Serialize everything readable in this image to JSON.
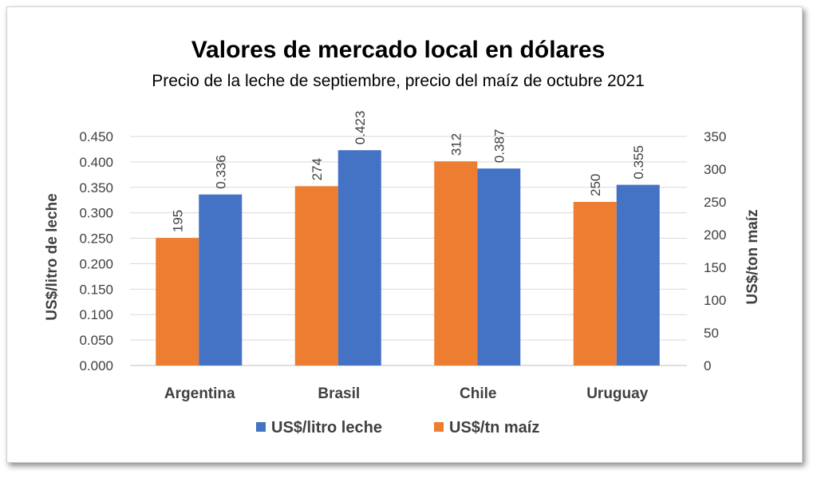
{
  "chart_data": {
    "type": "bar",
    "title": "Valores de mercado local en dólares",
    "subtitle": "Precio de la leche de septiembre, precio del maíz de octubre 2021",
    "categories": [
      "Argentina",
      "Brasil",
      "Chile",
      "Uruguay"
    ],
    "series": [
      {
        "name": "US$/litro leche",
        "axis": "left",
        "color": "#4472C4",
        "values": [
          0.336,
          0.423,
          0.387,
          0.355
        ],
        "labels": [
          "0.336",
          "0.423",
          "0.387",
          "0.355"
        ]
      },
      {
        "name": "US$/tn maíz",
        "axis": "right",
        "color": "#ED7D31",
        "values": [
          195,
          274,
          312,
          250
        ],
        "labels": [
          "195",
          "274",
          "312",
          "250"
        ]
      }
    ],
    "y_left": {
      "label": "US$/litro de leche",
      "min": 0,
      "max": 0.45,
      "ticks": [
        "0.000",
        "0.050",
        "0.100",
        "0.150",
        "0.200",
        "0.250",
        "0.300",
        "0.350",
        "0.400",
        "0.450"
      ]
    },
    "y_right": {
      "label": "US$/ton maíz",
      "min": 0,
      "max": 350,
      "ticks": [
        "0",
        "50",
        "100",
        "150",
        "200",
        "250",
        "300",
        "350"
      ]
    },
    "grid": true,
    "legend_position": "bottom"
  }
}
